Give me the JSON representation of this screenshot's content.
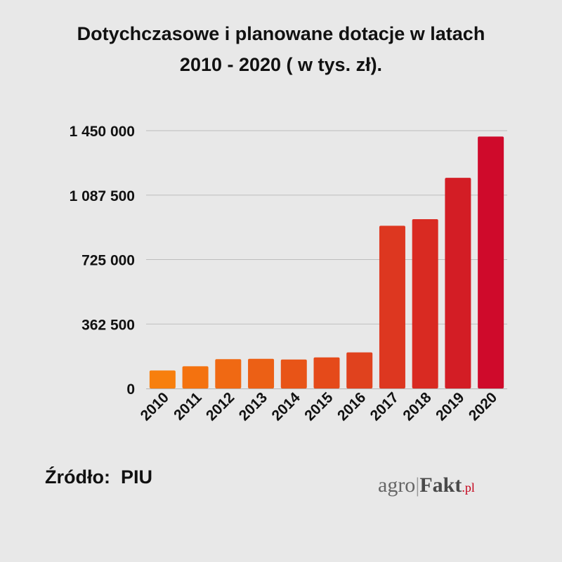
{
  "title": {
    "line1": "Dotychczasowe i planowane dotacje w latach",
    "line2": "2010 - 2020 ( w tys. zł)."
  },
  "source": "Źródło:  PIU",
  "brand": {
    "part1": "agro",
    "separator": "|",
    "part2": "Fakt",
    "part3": ".pl"
  },
  "chart_data": {
    "type": "bar",
    "title": "Dotychczasowe i planowane dotacje w latach 2010 - 2020 ( w tys. zł).",
    "xlabel": "",
    "ylabel": "",
    "categories": [
      "2010",
      "2011",
      "2012",
      "2013",
      "2014",
      "2015",
      "2016",
      "2017",
      "2018",
      "2019",
      "2020"
    ],
    "values": [
      101000,
      125000,
      165000,
      167000,
      163000,
      175000,
      203000,
      915000,
      952000,
      1185000,
      1417000
    ],
    "ylim": [
      0,
      1450000
    ],
    "yticks": [
      0,
      362500,
      725000,
      1087500,
      1450000
    ],
    "ytick_labels": [
      "0",
      "362 500",
      "725 000",
      "1 087 500",
      "1 450 000"
    ],
    "grid": true,
    "legend": "none",
    "bar_colors": [
      "#f77f0e",
      "#f4720f",
      "#f06913",
      "#ec6015",
      "#e85417",
      "#e54a1a",
      "#e0421e",
      "#dd3720",
      "#d92a22",
      "#d31d25",
      "#cf0a2b"
    ],
    "grid_color": "#bdbdbd"
  }
}
